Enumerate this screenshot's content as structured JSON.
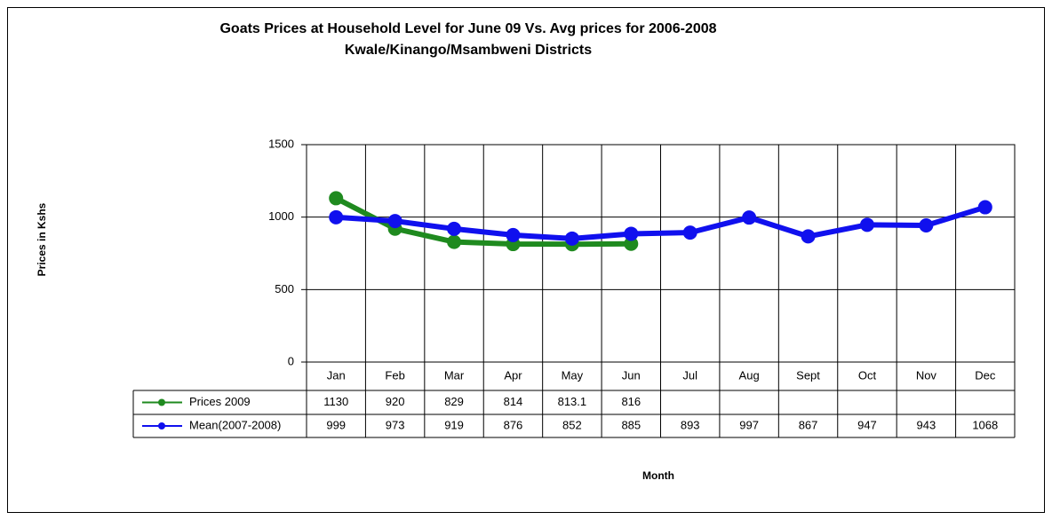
{
  "chart_data": {
    "type": "line",
    "title": "Goats Prices at Household Level for June 09 Vs. Avg prices for 2006-2008",
    "subtitle": "Kwale/Kinango/Msambweni Districts",
    "y_label": "Prices in Kshs",
    "x_label": "Month",
    "categories": [
      "Jan",
      "Feb",
      "Mar",
      "Apr",
      "May",
      "Jun",
      "Jul",
      "Aug",
      "Sept",
      "Oct",
      "Nov",
      "Dec"
    ],
    "series": [
      {
        "name": "Prices 2009",
        "color": "#1f8a1f",
        "values": [
          1130,
          920,
          829,
          814,
          813.1,
          816,
          null,
          null,
          null,
          null,
          null,
          null
        ]
      },
      {
        "name": "Mean(2007-2008)",
        "color": "#1010ee",
        "values": [
          999,
          973,
          919,
          876,
          852,
          885,
          893,
          997,
          867,
          947,
          943,
          1068
        ]
      }
    ],
    "ylim": [
      0,
      1500
    ],
    "yticks": [
      0,
      500,
      1000,
      1500
    ],
    "grid": true
  }
}
